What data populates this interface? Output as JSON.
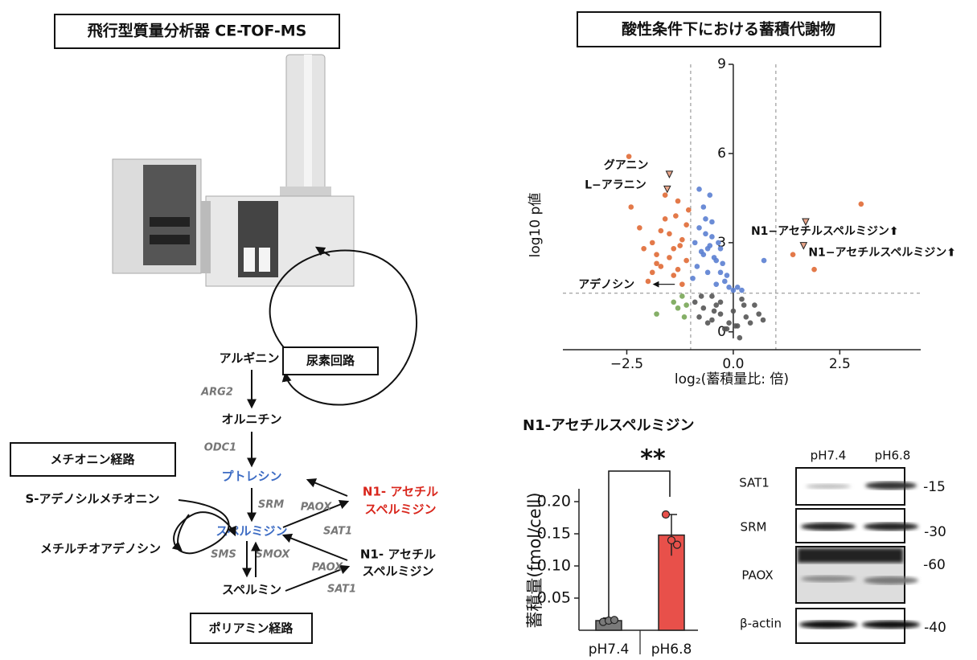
{
  "instrument": {
    "title": "飛行型質量分析器 CE-TOF-MS"
  },
  "pathway": {
    "urea_cycle": "尿素回路",
    "methionine_pathway": "メチオニン経路",
    "polyamine_pathway": "ポリアミン経路",
    "metabolites": [
      "アルギニン",
      "オルニチン",
      "プトレシン",
      "スペルミジン",
      "スペルミン",
      "S-アデノシルメチオニン",
      "メチルチオアデノシン"
    ],
    "enzymes": [
      "ARG2",
      "ODC1",
      "SRM",
      "SMS",
      "SMOX",
      "PAOX",
      "SAT1",
      "PAOX",
      "SAT1"
    ],
    "products": [
      [
        "N1- アセチル",
        "スペルミジン"
      ],
      [
        "N1- アセチル",
        "スペルミジン"
      ]
    ]
  },
  "chart_data": [
    {
      "type": "scatter",
      "title": "酸性条件下における蓄積代謝物",
      "xlabel": "log₂(蓄積量比: 倍)",
      "ylabel": "log10 p値",
      "xlim": [
        -4,
        4.4
      ],
      "ylim": [
        -0.6,
        9
      ],
      "xticks": [
        {
          "value": -2.5,
          "label": "−2.5"
        },
        {
          "value": 0,
          "label": "0.0"
        },
        2.5
      ],
      "yticks": [
        0,
        3,
        6,
        9
      ],
      "thresholds": {
        "x": [
          -1,
          1
        ],
        "y": 1.3
      },
      "series": [
        {
          "color": "#e06a35",
          "x": [
            -2.4,
            -2.2,
            -1.9,
            -1.8,
            -1.7,
            -1.6,
            -1.5,
            -1.4,
            -1.3,
            -1.2,
            -1.1,
            -1.05,
            -1.9,
            -2.1,
            -1.4,
            -1.6,
            -1.2,
            -1.3,
            -1.7,
            -1.5,
            -1.1,
            -2.0,
            -1.8,
            -1.35,
            -1.25,
            -2.45,
            3.0,
            1.9,
            1.4
          ],
          "values": [
            4.2,
            3.5,
            3.0,
            2.6,
            2.2,
            3.8,
            3.3,
            2.8,
            4.4,
            3.1,
            2.4,
            4.1,
            2.0,
            2.8,
            1.9,
            4.6,
            1.6,
            2.1,
            3.4,
            2.5,
            3.6,
            1.7,
            2.3,
            3.9,
            2.9,
            5.9,
            4.3,
            2.1,
            2.6
          ]
        },
        {
          "color": "#5b7fd1",
          "x": [
            -0.9,
            -0.8,
            -0.7,
            -0.6,
            -0.5,
            -0.4,
            -0.3,
            -0.2,
            -0.1,
            0.0,
            -0.85,
            -0.75,
            -0.65,
            -0.55,
            -0.45,
            -0.35,
            -0.25,
            -0.15,
            -0.95,
            -0.6,
            -0.5,
            -0.7,
            -0.4,
            -0.8,
            -0.3,
            0.1,
            0.2,
            -0.65,
            -0.55,
            0.72
          ],
          "values": [
            3.0,
            3.5,
            4.2,
            2.8,
            3.2,
            2.4,
            2.0,
            1.7,
            1.5,
            1.4,
            2.2,
            2.7,
            3.8,
            4.6,
            2.5,
            3.0,
            2.3,
            1.9,
            1.8,
            2.0,
            3.7,
            2.6,
            1.6,
            4.8,
            2.8,
            1.5,
            1.4,
            3.3,
            2.9,
            2.4
          ]
        },
        {
          "color": "#78a656",
          "x": [
            -1.8,
            -1.4,
            -1.3,
            -1.2,
            -1.15,
            -1.1
          ],
          "values": [
            0.6,
            1.0,
            0.8,
            1.2,
            0.5,
            0.9
          ]
        },
        {
          "color": "#555555",
          "x": [
            -0.9,
            -0.7,
            -0.5,
            -0.3,
            -0.1,
            0.1,
            0.3,
            0.5,
            0.7,
            -0.8,
            -0.6,
            -0.4,
            -0.2,
            0.0,
            0.2,
            0.4,
            -0.5,
            -0.3,
            0.05,
            0.15,
            -0.75,
            -0.45,
            0.6,
            -0.15,
            0.25
          ],
          "values": [
            1.0,
            0.8,
            1.2,
            0.6,
            0.3,
            0.2,
            0.5,
            0.9,
            0.4,
            0.5,
            0.3,
            0.9,
            0.1,
            0.7,
            1.1,
            0.3,
            0.4,
            1.0,
            0.2,
            -0.2,
            1.2,
            0.7,
            0.6,
            0.1,
            0.9
          ]
        }
      ],
      "annotations": [
        {
          "text": "グアニン",
          "x": -1.5,
          "y": 5.3,
          "marker": "triangle"
        },
        {
          "text": "L−アラニン",
          "x": -1.55,
          "y": 4.8,
          "marker": "triangle"
        },
        {
          "text": "N1−アセチルスペルミジン⬆",
          "x": 1.7,
          "y": 3.7,
          "marker": "triangle"
        },
        {
          "text": "N1−アセチルスペルミジン⬆",
          "x": 1.65,
          "y": 2.9,
          "marker": "triangle"
        },
        {
          "text": "アデノシン",
          "x": -1.75,
          "y": 1.6,
          "marker": "arrow"
        }
      ]
    },
    {
      "type": "bar",
      "title": "N1-アセチルスペルミジン",
      "ylabel": "蓄積量(fmol/cell)",
      "categories": [
        "pH7.4",
        "pH6.8"
      ],
      "values": [
        0.015,
        0.148
      ],
      "errors": [
        0.004,
        0.032
      ],
      "points": [
        [
          0.013,
          0.015,
          0.016
        ],
        [
          0.18,
          0.14,
          0.133
        ]
      ],
      "colors": [
        "#7a7a7a",
        "#e8504a"
      ],
      "significance": "**",
      "ylim": [
        0,
        0.22
      ],
      "yticks": [
        {
          "value": 0.05,
          "label": "0.05"
        },
        {
          "value": 0.1,
          "label": "0.10"
        },
        0.15,
        {
          "value": 0.2,
          "label": "0.20"
        }
      ]
    }
  ],
  "blot": {
    "lanes": [
      "pH7.4",
      "pH6.8"
    ],
    "rows": [
      {
        "label": "SAT1",
        "size": "-15"
      },
      {
        "label": "SRM",
        "size": "-30"
      },
      {
        "label": "PAOX",
        "size": "-60"
      },
      {
        "label": "β-actin",
        "size": "-40"
      }
    ]
  }
}
